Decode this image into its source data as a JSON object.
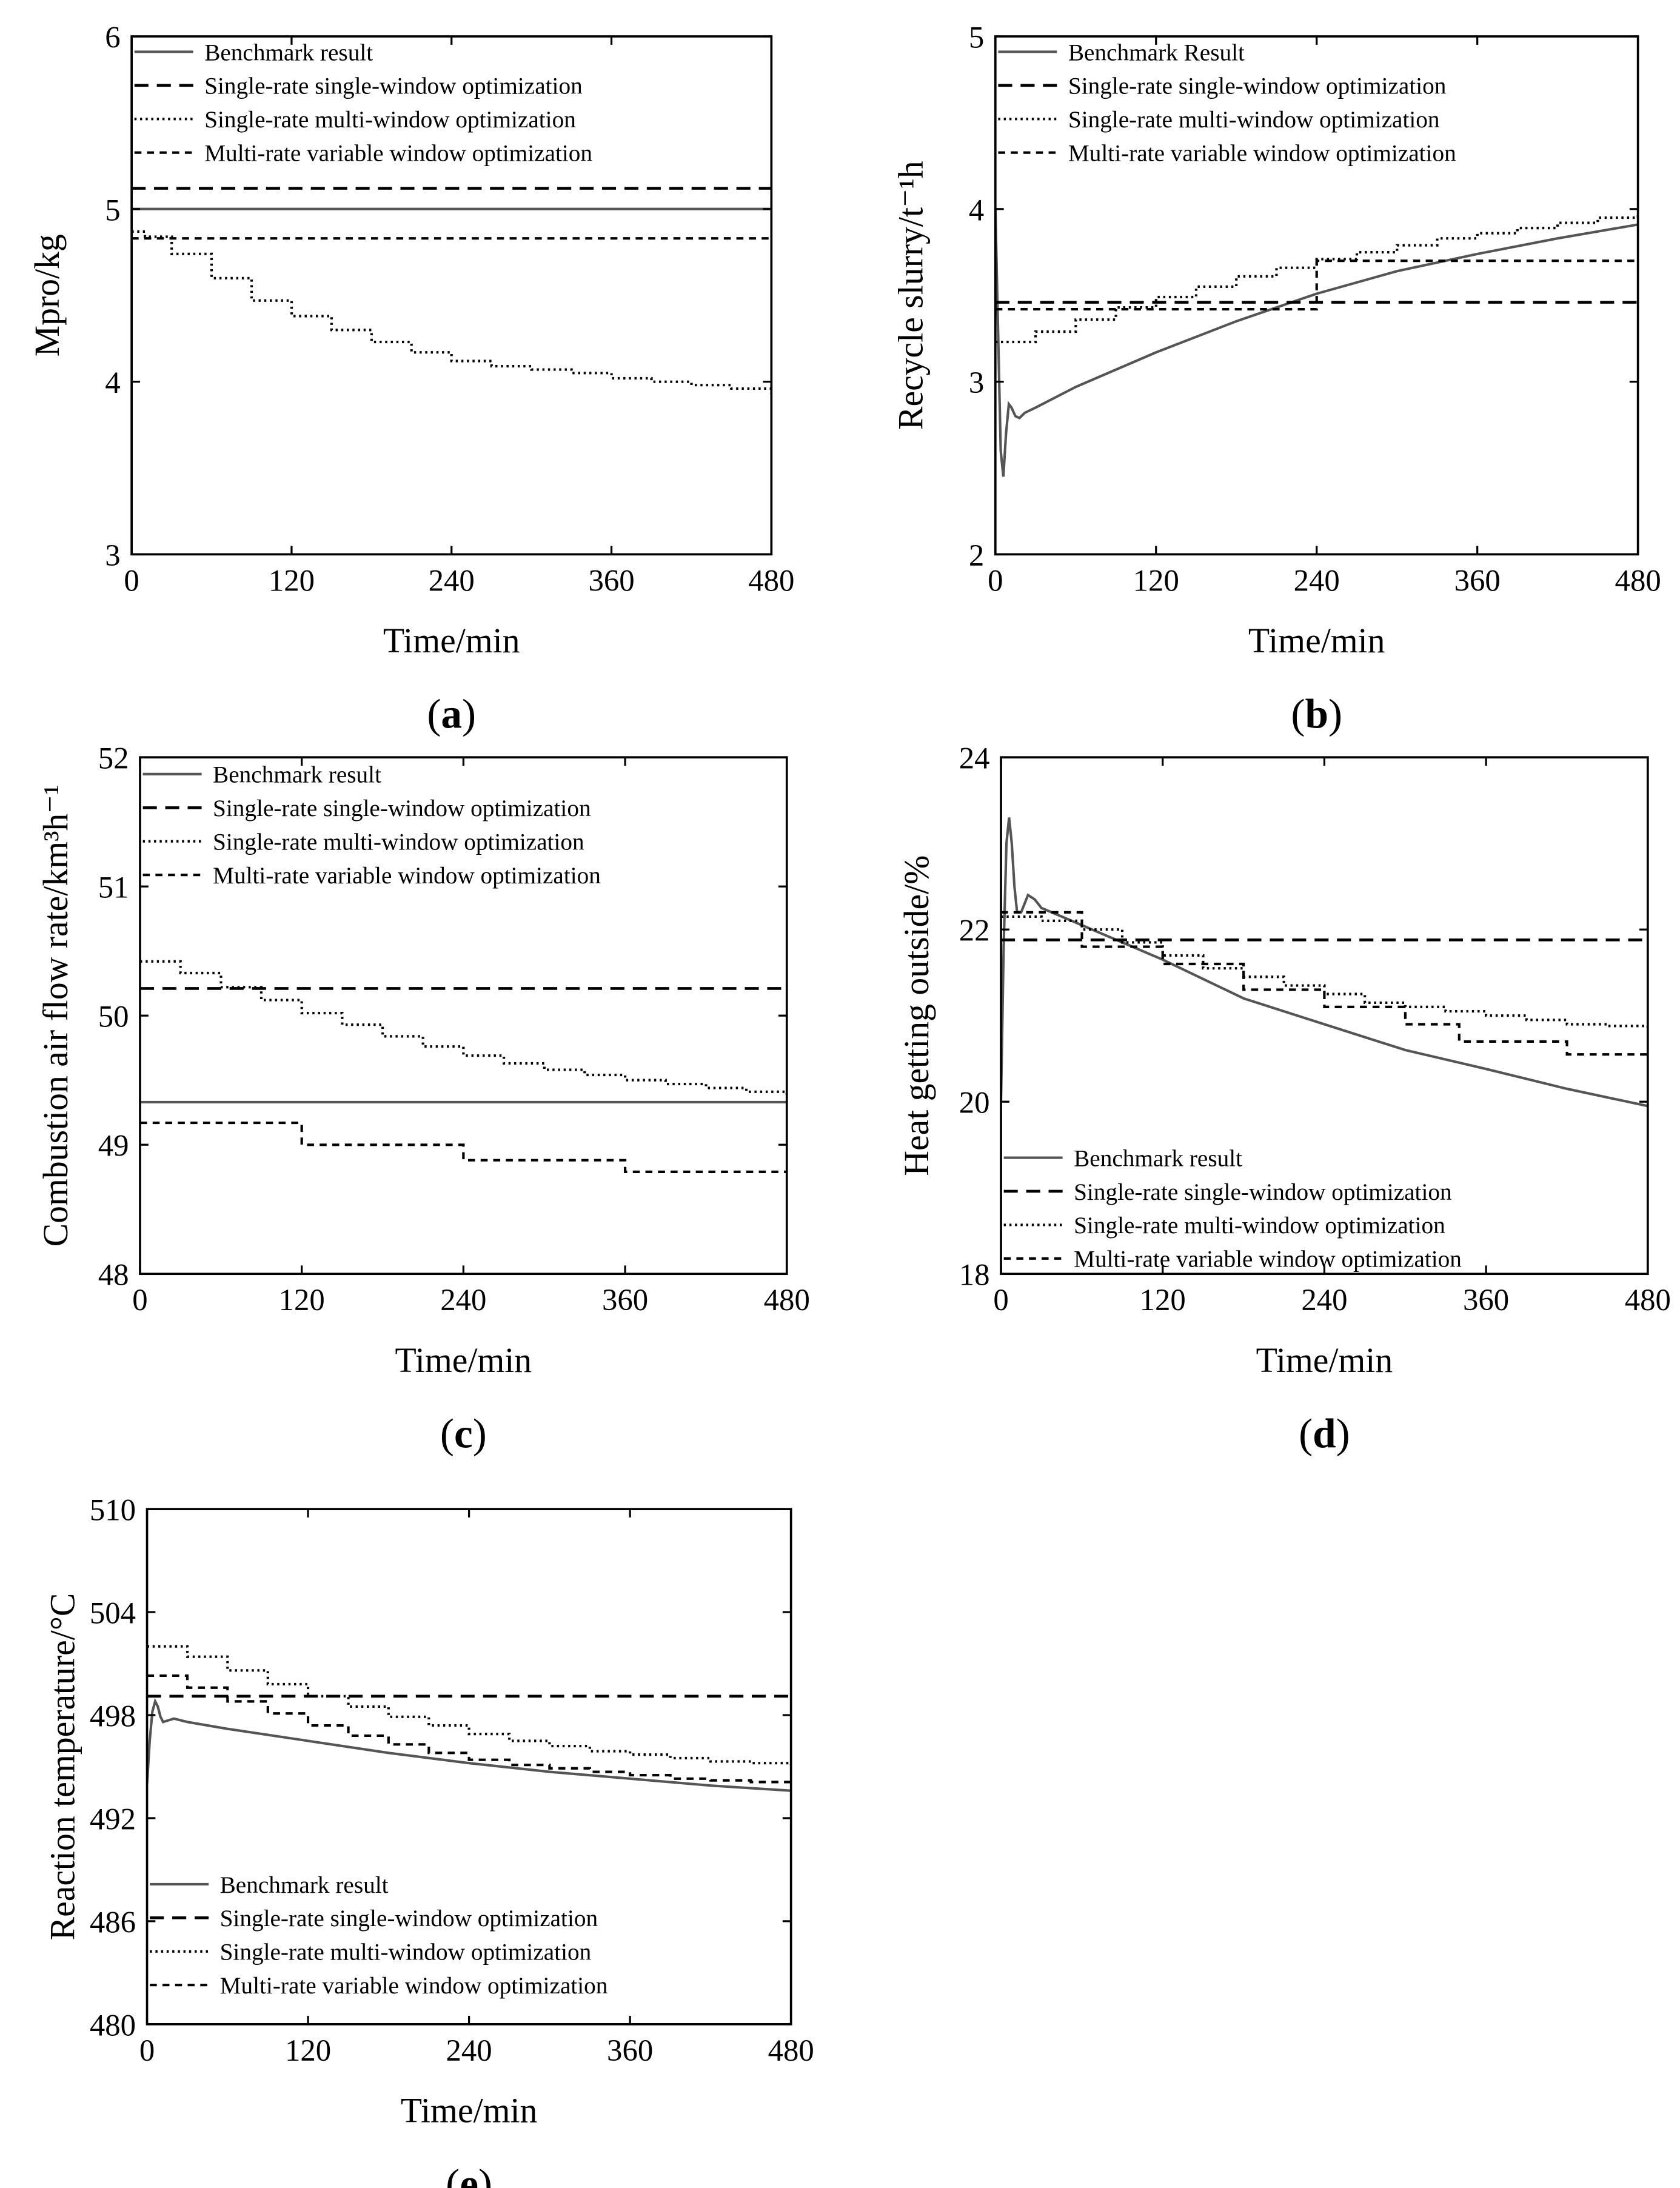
{
  "chart_data": [
    {
      "panel": "(a)",
      "type": "line",
      "xlabel": "Time/min",
      "ylabel": "Mpro/kg",
      "xlim": [
        0,
        480
      ],
      "ylim": [
        3,
        6
      ],
      "xticks": [
        0,
        120,
        240,
        360,
        480
      ],
      "yticks": [
        3,
        4,
        5,
        6
      ],
      "legend_position": "top-left",
      "series": [
        {
          "name": "Benchmark result",
          "style": "solid",
          "x": [
            0,
            480
          ],
          "y": [
            5.0,
            5.0
          ]
        },
        {
          "name": "Single-rate single-window optimization",
          "style": "dashed",
          "x": [
            0,
            480
          ],
          "y": [
            5.12,
            5.12
          ]
        },
        {
          "name": "Single-rate multi-window optimization",
          "style": "dotted",
          "step": true,
          "x": [
            0,
            10,
            30,
            60,
            90,
            120,
            150,
            180,
            210,
            240,
            270,
            300,
            330,
            360,
            390,
            420,
            450,
            480
          ],
          "y": [
            4.87,
            4.84,
            4.74,
            4.6,
            4.47,
            4.38,
            4.3,
            4.23,
            4.17,
            4.12,
            4.09,
            4.07,
            4.05,
            4.02,
            4.0,
            3.98,
            3.96,
            3.93
          ]
        },
        {
          "name": "Multi-rate variable window optimization",
          "style": "short-dashed",
          "x": [
            0,
            480
          ],
          "y": [
            4.83,
            4.83
          ]
        }
      ]
    },
    {
      "panel": "(b)",
      "type": "line",
      "xlabel": "Time/min",
      "ylabel": "Recycle slurry/t⁻¹h",
      "xlim": [
        0,
        480
      ],
      "ylim": [
        2,
        5
      ],
      "xticks": [
        0,
        120,
        240,
        360,
        480
      ],
      "yticks": [
        2,
        3,
        4,
        5
      ],
      "legend_position": "top-left",
      "series": [
        {
          "name": "Benchmark Result",
          "style": "solid",
          "x": [
            0,
            2,
            4,
            6,
            8,
            10,
            12,
            15,
            18,
            22,
            30,
            60,
            120,
            180,
            240,
            300,
            360,
            420,
            480
          ],
          "y": [
            4.0,
            3.3,
            2.6,
            2.45,
            2.7,
            2.87,
            2.85,
            2.8,
            2.79,
            2.82,
            2.85,
            2.97,
            3.17,
            3.35,
            3.51,
            3.64,
            3.74,
            3.83,
            3.91
          ]
        },
        {
          "name": "Single-rate single-window optimization",
          "style": "dashed",
          "x": [
            0,
            480
          ],
          "y": [
            3.46,
            3.46
          ]
        },
        {
          "name": "Single-rate multi-window optimization",
          "style": "dotted",
          "step": true,
          "x": [
            0,
            30,
            60,
            90,
            120,
            150,
            180,
            210,
            240,
            270,
            300,
            330,
            360,
            390,
            420,
            450,
            480
          ],
          "y": [
            3.23,
            3.29,
            3.36,
            3.43,
            3.49,
            3.55,
            3.61,
            3.66,
            3.71,
            3.75,
            3.79,
            3.83,
            3.86,
            3.89,
            3.92,
            3.95,
            3.98
          ]
        },
        {
          "name": "Multi-rate variable window optimization",
          "style": "short-dashed",
          "step": true,
          "x": [
            0,
            240,
            240,
            480
          ],
          "y": [
            3.42,
            3.42,
            3.7,
            3.7
          ]
        }
      ]
    },
    {
      "panel": "(c)",
      "type": "line",
      "xlabel": "Time/min",
      "ylabel": "Combustion air flow rate/km³h⁻¹",
      "xlim": [
        0,
        480
      ],
      "ylim": [
        48,
        52
      ],
      "xticks": [
        0,
        120,
        240,
        360,
        480
      ],
      "yticks": [
        48,
        49,
        50,
        51,
        52
      ],
      "legend_position": "top-left",
      "series": [
        {
          "name": "Benchmark result",
          "style": "solid",
          "x": [
            0,
            480
          ],
          "y": [
            49.33,
            49.33
          ]
        },
        {
          "name": "Single-rate single-window optimization",
          "style": "dashed",
          "x": [
            0,
            480
          ],
          "y": [
            50.21,
            50.21
          ]
        },
        {
          "name": "Single-rate multi-window optimization",
          "style": "dotted",
          "step": true,
          "x": [
            0,
            30,
            60,
            90,
            120,
            150,
            180,
            210,
            240,
            270,
            300,
            330,
            360,
            390,
            420,
            450,
            480
          ],
          "y": [
            50.42,
            50.33,
            50.22,
            50.12,
            50.02,
            49.93,
            49.84,
            49.76,
            49.69,
            49.63,
            49.58,
            49.54,
            49.5,
            49.47,
            49.44,
            49.41,
            49.39
          ]
        },
        {
          "name": "Multi-rate variable window optimization",
          "style": "short-dashed",
          "step": true,
          "x": [
            0,
            120,
            120,
            240,
            240,
            360,
            360,
            480
          ],
          "y": [
            49.17,
            49.17,
            49.0,
            49.0,
            48.88,
            48.88,
            48.79,
            48.79
          ]
        }
      ]
    },
    {
      "panel": "(d)",
      "type": "line",
      "xlabel": "Time/min",
      "ylabel": "Heat getting outside/%",
      "xlim": [
        0,
        480
      ],
      "ylim": [
        18,
        24
      ],
      "xticks": [
        0,
        120,
        240,
        360,
        480
      ],
      "yticks": [
        18,
        20,
        22,
        24
      ],
      "legend_position": "bottom-left",
      "series": [
        {
          "name": "Benchmark result",
          "style": "solid",
          "x": [
            0,
            2,
            4,
            6,
            8,
            10,
            12,
            15,
            20,
            25,
            30,
            60,
            120,
            180,
            240,
            300,
            360,
            420,
            480
          ],
          "y": [
            20.0,
            21.8,
            23.0,
            23.3,
            23.0,
            22.5,
            22.2,
            22.2,
            22.4,
            22.35,
            22.25,
            22.05,
            21.65,
            21.2,
            20.9,
            20.6,
            20.38,
            20.15,
            19.95
          ]
        },
        {
          "name": "Single-rate single-window optimization",
          "style": "dashed",
          "x": [
            0,
            480
          ],
          "y": [
            21.88,
            21.88
          ]
        },
        {
          "name": "Single-rate multi-window optimization",
          "style": "dotted",
          "step": true,
          "x": [
            0,
            30,
            60,
            90,
            120,
            150,
            180,
            210,
            240,
            270,
            300,
            330,
            360,
            390,
            420,
            450,
            480
          ],
          "y": [
            22.15,
            22.1,
            22.0,
            21.85,
            21.7,
            21.55,
            21.45,
            21.35,
            21.25,
            21.15,
            21.1,
            21.05,
            21.0,
            20.95,
            20.9,
            20.88,
            20.85
          ]
        },
        {
          "name": "Multi-rate variable window optimization",
          "style": "short-dashed",
          "step": true,
          "x": [
            0,
            60,
            60,
            120,
            120,
            180,
            180,
            240,
            240,
            300,
            300,
            340,
            340,
            420,
            420,
            480
          ],
          "y": [
            22.2,
            22.2,
            21.8,
            21.8,
            21.6,
            21.6,
            21.3,
            21.3,
            21.1,
            21.1,
            20.9,
            20.9,
            20.7,
            20.7,
            20.55,
            20.55
          ]
        }
      ]
    },
    {
      "panel": "(e)",
      "type": "line",
      "xlabel": "Time/min",
      "ylabel": "Reaction temperature/°C",
      "xlim": [
        0,
        480
      ],
      "ylim": [
        480,
        510
      ],
      "xticks": [
        0,
        120,
        240,
        360,
        480
      ],
      "yticks": [
        480,
        486,
        492,
        498,
        504,
        510
      ],
      "legend_position": "bottom-left",
      "series": [
        {
          "name": "Benchmark result",
          "style": "solid",
          "x": [
            0,
            2,
            4,
            6,
            8,
            10,
            12,
            16,
            20,
            30,
            60,
            120,
            180,
            240,
            300,
            360,
            420,
            480
          ],
          "y": [
            494.0,
            496.5,
            498.2,
            498.8,
            498.5,
            497.9,
            497.6,
            497.7,
            497.8,
            497.6,
            497.2,
            496.5,
            495.8,
            495.2,
            494.7,
            494.3,
            493.9,
            493.6
          ]
        },
        {
          "name": "Single-rate single-window optimization",
          "style": "dashed",
          "x": [
            0,
            480
          ],
          "y": [
            499.1,
            499.1
          ]
        },
        {
          "name": "Single-rate multi-window optimization",
          "style": "dotted",
          "step": true,
          "x": [
            0,
            30,
            60,
            90,
            120,
            150,
            180,
            210,
            240,
            270,
            300,
            330,
            360,
            390,
            420,
            450,
            480
          ],
          "y": [
            502.0,
            501.4,
            500.6,
            499.8,
            499.1,
            498.5,
            497.9,
            497.4,
            496.9,
            496.5,
            496.2,
            495.9,
            495.7,
            495.5,
            495.3,
            495.2,
            495.1
          ]
        },
        {
          "name": "Multi-rate variable window optimization",
          "style": "short-dashed",
          "step": true,
          "x": [
            0,
            30,
            60,
            90,
            120,
            150,
            180,
            210,
            240,
            270,
            300,
            330,
            360,
            390,
            420,
            450,
            480
          ],
          "y": [
            500.3,
            499.6,
            498.8,
            498.1,
            497.4,
            496.8,
            496.3,
            495.8,
            495.4,
            495.1,
            494.9,
            494.7,
            494.5,
            494.3,
            494.2,
            494.1,
            494.0
          ]
        }
      ]
    }
  ]
}
